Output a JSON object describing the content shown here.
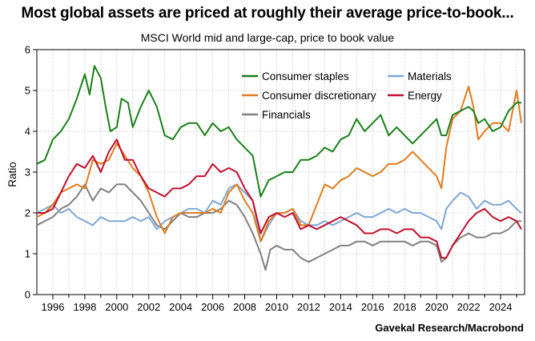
{
  "header": {
    "title": "Most global assets are priced at roughly their average price-to-book...",
    "subtitle": "MSCI World mid and large-cap, price to book value"
  },
  "source": "Gavekal Research/Macrobond",
  "colors": {
    "consumer_staples": "#1a7f1a",
    "materials": "#7fa8d4",
    "consumer_discretionary": "#e07c1e",
    "energy": "#c0102e",
    "financials": "#808080"
  },
  "chart_data": {
    "type": "line",
    "title": "Most global assets are priced at roughly their average price-to-book...",
    "subtitle": "MSCI World mid and large-cap, price to book value",
    "xlabel": "",
    "ylabel": "Ratio",
    "xlim": [
      1995.0,
      2025.5
    ],
    "ylim": [
      0,
      6
    ],
    "x_ticks": [
      "1996",
      "1998",
      "2000",
      "2002",
      "2004",
      "2006",
      "2008",
      "2010",
      "2012",
      "2014",
      "2016",
      "2018",
      "2020",
      "2022",
      "2024"
    ],
    "y_ticks": [
      "0",
      "1",
      "2",
      "3",
      "4",
      "5",
      "6"
    ],
    "grid": true,
    "legend_position": "top-center",
    "series": [
      {
        "name": "Consumer staples",
        "color": "#1a7f1a",
        "x": [
          1995.0,
          1995.5,
          1996.0,
          1996.5,
          1997.0,
          1997.5,
          1998.0,
          1998.3,
          1998.6,
          1999.0,
          1999.3,
          1999.6,
          2000.0,
          2000.3,
          2000.7,
          2001.0,
          2001.5,
          2002.0,
          2002.5,
          2003.0,
          2003.5,
          2004.0,
          2004.5,
          2005.0,
          2005.5,
          2006.0,
          2006.5,
          2007.0,
          2007.5,
          2008.0,
          2008.5,
          2009.0,
          2009.5,
          2010.0,
          2010.5,
          2011.0,
          2011.5,
          2012.0,
          2012.5,
          2013.0,
          2013.5,
          2014.0,
          2014.5,
          2015.0,
          2015.5,
          2016.0,
          2016.5,
          2017.0,
          2017.5,
          2018.0,
          2018.5,
          2019.0,
          2019.5,
          2020.0,
          2020.3,
          2020.6,
          2021.0,
          2021.5,
          2022.0,
          2022.3,
          2022.6,
          2023.0,
          2023.5,
          2024.0,
          2024.5,
          2025.0,
          2025.3
        ],
        "values": [
          3.2,
          3.3,
          3.8,
          4.0,
          4.3,
          4.8,
          5.4,
          4.9,
          5.6,
          5.3,
          4.6,
          4.0,
          4.1,
          4.8,
          4.7,
          4.1,
          4.6,
          5.0,
          4.6,
          3.9,
          3.8,
          4.1,
          4.2,
          4.2,
          3.9,
          4.2,
          4.0,
          4.1,
          3.8,
          3.6,
          3.4,
          2.4,
          2.8,
          2.9,
          3.0,
          3.0,
          3.3,
          3.3,
          3.4,
          3.6,
          3.5,
          3.8,
          3.9,
          4.3,
          4.0,
          4.2,
          4.4,
          3.9,
          4.1,
          3.9,
          3.7,
          3.9,
          4.1,
          4.3,
          3.9,
          3.9,
          4.4,
          4.5,
          4.6,
          4.5,
          4.2,
          4.3,
          4.0,
          4.1,
          4.5,
          4.7,
          4.7
        ]
      },
      {
        "name": "Materials",
        "color": "#7fa8d4",
        "x": [
          1995.0,
          1995.5,
          1996.0,
          1996.5,
          1997.0,
          1997.5,
          1998.0,
          1998.5,
          1999.0,
          1999.5,
          2000.0,
          2000.5,
          2001.0,
          2001.5,
          2002.0,
          2002.5,
          2003.0,
          2003.5,
          2004.0,
          2004.5,
          2005.0,
          2005.5,
          2006.0,
          2006.5,
          2007.0,
          2007.5,
          2008.0,
          2008.5,
          2009.0,
          2009.5,
          2010.0,
          2010.5,
          2011.0,
          2011.5,
          2012.0,
          2012.5,
          2013.0,
          2013.5,
          2014.0,
          2014.5,
          2015.0,
          2015.5,
          2016.0,
          2016.5,
          2017.0,
          2017.5,
          2018.0,
          2018.5,
          2019.0,
          2019.5,
          2020.0,
          2020.3,
          2020.6,
          2021.0,
          2021.5,
          2022.0,
          2022.5,
          2023.0,
          2023.5,
          2024.0,
          2024.5,
          2025.0,
          2025.3
        ],
        "values": [
          2.0,
          2.1,
          2.2,
          2.0,
          2.1,
          1.9,
          1.8,
          1.7,
          1.9,
          1.8,
          1.8,
          1.8,
          1.9,
          1.8,
          1.9,
          1.6,
          1.8,
          1.9,
          2.0,
          2.1,
          2.1,
          2.0,
          2.3,
          2.2,
          2.6,
          2.7,
          2.5,
          2.3,
          1.3,
          1.7,
          2.0,
          2.0,
          2.1,
          1.8,
          1.7,
          1.7,
          1.8,
          1.7,
          1.8,
          1.9,
          2.0,
          1.9,
          1.9,
          2.0,
          2.1,
          2.0,
          2.1,
          2.0,
          2.0,
          1.9,
          1.8,
          1.6,
          2.1,
          2.3,
          2.5,
          2.4,
          2.1,
          2.3,
          2.2,
          2.2,
          2.3,
          2.1,
          2.0
        ]
      },
      {
        "name": "Consumer discretionary",
        "color": "#e07c1e",
        "x": [
          1995.0,
          1995.5,
          1996.0,
          1996.5,
          1997.0,
          1997.5,
          1998.0,
          1998.5,
          1999.0,
          1999.5,
          2000.0,
          2000.5,
          2001.0,
          2001.5,
          2002.0,
          2002.5,
          2003.0,
          2003.5,
          2004.0,
          2004.5,
          2005.0,
          2005.5,
          2006.0,
          2006.5,
          2007.0,
          2007.5,
          2008.0,
          2008.5,
          2009.0,
          2009.5,
          2010.0,
          2010.5,
          2011.0,
          2011.5,
          2012.0,
          2012.5,
          2013.0,
          2013.5,
          2014.0,
          2014.5,
          2015.0,
          2015.5,
          2016.0,
          2016.5,
          2017.0,
          2017.5,
          2018.0,
          2018.5,
          2019.0,
          2019.5,
          2020.0,
          2020.3,
          2020.6,
          2021.0,
          2021.5,
          2022.0,
          2022.3,
          2022.6,
          2023.0,
          2023.5,
          2024.0,
          2024.5,
          2025.0,
          2025.3
        ],
        "values": [
          1.9,
          2.0,
          2.2,
          2.5,
          2.6,
          2.7,
          2.6,
          3.3,
          3.2,
          3.3,
          3.7,
          3.4,
          3.1,
          2.9,
          2.5,
          1.9,
          1.5,
          1.9,
          2.0,
          2.0,
          2.0,
          2.0,
          2.1,
          2.0,
          2.5,
          2.7,
          2.3,
          2.0,
          1.3,
          1.8,
          2.0,
          2.0,
          2.1,
          1.7,
          1.7,
          2.2,
          2.7,
          2.6,
          2.8,
          2.9,
          3.1,
          3.0,
          2.9,
          3.0,
          3.2,
          3.2,
          3.3,
          3.5,
          3.3,
          3.1,
          2.9,
          2.6,
          3.6,
          4.3,
          4.5,
          5.1,
          4.6,
          3.8,
          4.0,
          4.2,
          4.2,
          4.0,
          5.0,
          4.2
        ]
      },
      {
        "name": "Energy",
        "color": "#c0102e",
        "x": [
          1995.0,
          1995.5,
          1996.0,
          1996.5,
          1997.0,
          1997.5,
          1998.0,
          1998.5,
          1999.0,
          1999.5,
          2000.0,
          2000.5,
          2001.0,
          2001.5,
          2002.0,
          2002.5,
          2003.0,
          2003.5,
          2004.0,
          2004.5,
          2005.0,
          2005.5,
          2006.0,
          2006.5,
          2007.0,
          2007.5,
          2008.0,
          2008.5,
          2009.0,
          2009.5,
          2010.0,
          2010.5,
          2011.0,
          2011.5,
          2012.0,
          2012.5,
          2013.0,
          2013.5,
          2014.0,
          2014.5,
          2015.0,
          2015.5,
          2016.0,
          2016.5,
          2017.0,
          2017.5,
          2018.0,
          2018.5,
          2019.0,
          2019.5,
          2020.0,
          2020.3,
          2020.6,
          2021.0,
          2021.5,
          2022.0,
          2022.5,
          2023.0,
          2023.5,
          2024.0,
          2024.5,
          2025.0,
          2025.3
        ],
        "values": [
          2.0,
          2.0,
          2.1,
          2.5,
          2.9,
          3.2,
          3.1,
          3.4,
          3.0,
          3.5,
          3.8,
          3.3,
          3.3,
          2.9,
          2.6,
          2.5,
          2.4,
          2.6,
          2.6,
          2.7,
          2.9,
          2.9,
          3.2,
          3.0,
          3.1,
          3.0,
          2.6,
          2.3,
          1.5,
          1.9,
          2.0,
          1.9,
          2.0,
          1.6,
          1.7,
          1.6,
          1.7,
          1.8,
          1.9,
          1.8,
          1.7,
          1.5,
          1.5,
          1.6,
          1.6,
          1.5,
          1.6,
          1.6,
          1.4,
          1.4,
          1.3,
          0.9,
          0.9,
          1.2,
          1.5,
          1.8,
          2.0,
          2.1,
          1.9,
          1.8,
          1.9,
          1.8,
          1.6
        ]
      },
      {
        "name": "Financials",
        "color": "#808080",
        "x": [
          1995.0,
          1995.5,
          1996.0,
          1996.5,
          1997.0,
          1997.5,
          1998.0,
          1998.5,
          1999.0,
          1999.5,
          2000.0,
          2000.5,
          2001.0,
          2001.5,
          2002.0,
          2002.5,
          2003.0,
          2003.5,
          2004.0,
          2004.5,
          2005.0,
          2005.5,
          2006.0,
          2006.5,
          2007.0,
          2007.5,
          2008.0,
          2008.5,
          2009.0,
          2009.3,
          2009.6,
          2010.0,
          2010.5,
          2011.0,
          2011.5,
          2012.0,
          2012.5,
          2013.0,
          2013.5,
          2014.0,
          2014.5,
          2015.0,
          2015.5,
          2016.0,
          2016.5,
          2017.0,
          2017.5,
          2018.0,
          2018.5,
          2019.0,
          2019.5,
          2020.0,
          2020.3,
          2020.6,
          2021.0,
          2021.5,
          2022.0,
          2022.5,
          2023.0,
          2023.5,
          2024.0,
          2024.5,
          2025.0,
          2025.3
        ],
        "values": [
          1.7,
          1.8,
          1.9,
          2.1,
          2.2,
          2.4,
          2.7,
          2.3,
          2.6,
          2.5,
          2.7,
          2.7,
          2.5,
          2.3,
          2.0,
          1.7,
          1.6,
          1.8,
          2.0,
          1.9,
          1.9,
          2.0,
          2.0,
          2.1,
          2.3,
          2.2,
          1.9,
          1.5,
          1.0,
          0.6,
          1.1,
          1.2,
          1.1,
          1.1,
          0.9,
          0.8,
          0.9,
          1.0,
          1.1,
          1.2,
          1.2,
          1.3,
          1.3,
          1.2,
          1.3,
          1.3,
          1.3,
          1.3,
          1.2,
          1.3,
          1.3,
          1.2,
          0.8,
          0.9,
          1.2,
          1.4,
          1.5,
          1.4,
          1.4,
          1.5,
          1.5,
          1.6,
          1.8,
          1.8
        ]
      }
    ]
  }
}
